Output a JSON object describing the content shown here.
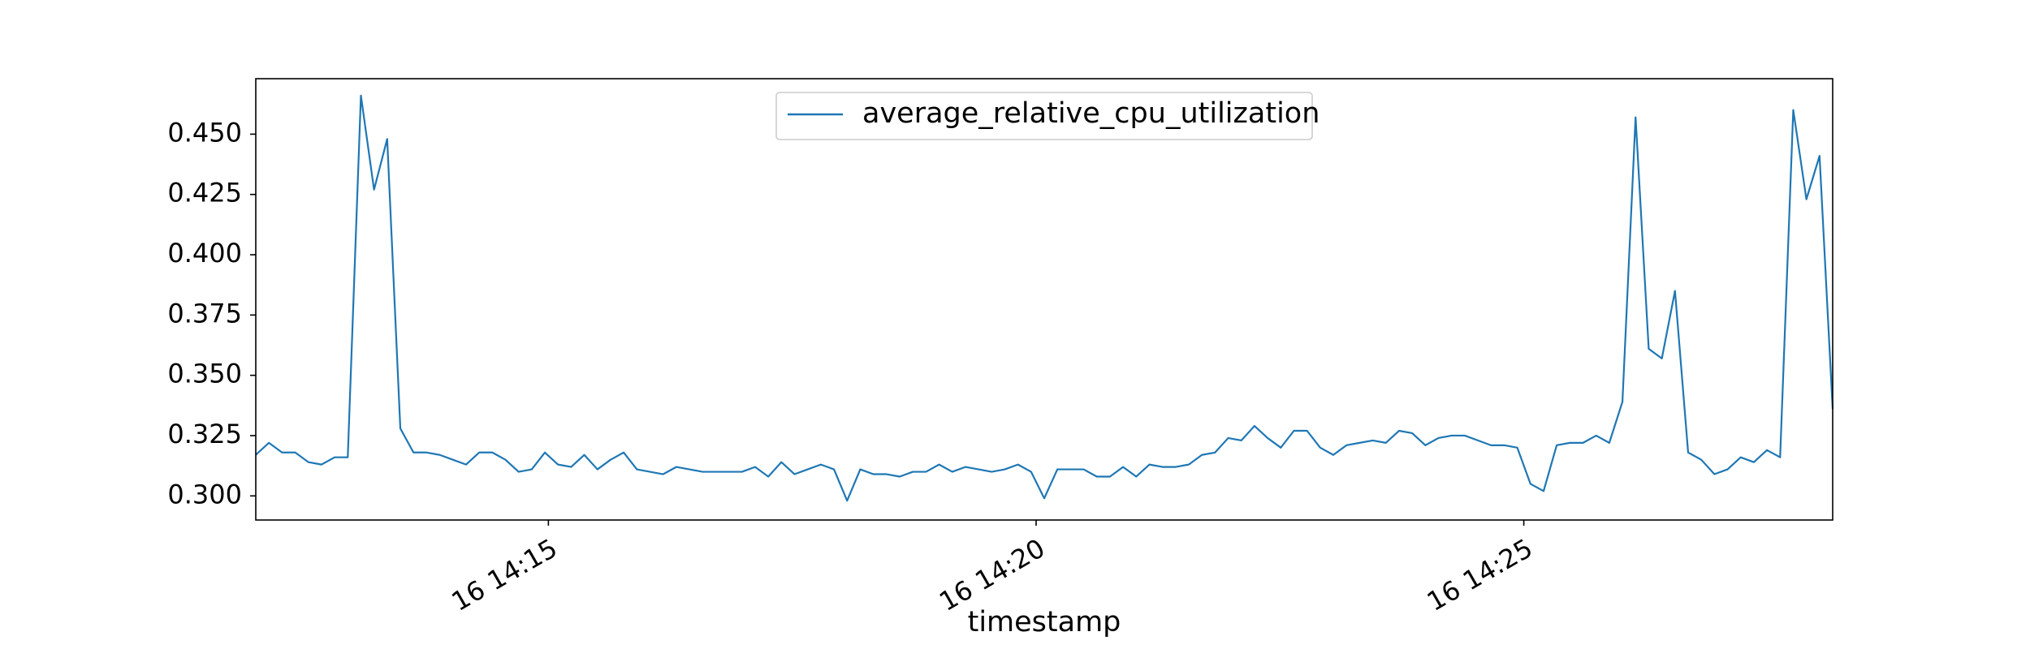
{
  "chart_data": {
    "type": "line",
    "title": "",
    "xlabel": "timestamp",
    "ylabel": "",
    "x_start": "16 14:12:00",
    "x_end": "16 14:28:10",
    "x_ticks": [
      "16 14:15",
      "16 14:20",
      "16 14:25"
    ],
    "y_ticks": [
      "0.300",
      "0.325",
      "0.350",
      "0.375",
      "0.400",
      "0.425",
      "0.450"
    ],
    "ylim": [
      0.29,
      0.473
    ],
    "grid": false,
    "legend_position": "top-center",
    "series": [
      {
        "name": "average_relative_cpu_utilization",
        "color": "#1f77b4",
        "values": [
          0.317,
          0.322,
          0.318,
          0.318,
          0.314,
          0.313,
          0.316,
          0.316,
          0.466,
          0.427,
          0.448,
          0.328,
          0.318,
          0.318,
          0.317,
          0.315,
          0.313,
          0.318,
          0.318,
          0.315,
          0.31,
          0.311,
          0.318,
          0.313,
          0.312,
          0.317,
          0.311,
          0.315,
          0.318,
          0.311,
          0.31,
          0.309,
          0.312,
          0.311,
          0.31,
          0.31,
          0.31,
          0.31,
          0.312,
          0.308,
          0.314,
          0.309,
          0.311,
          0.313,
          0.311,
          0.298,
          0.311,
          0.309,
          0.309,
          0.308,
          0.31,
          0.31,
          0.313,
          0.31,
          0.312,
          0.311,
          0.31,
          0.311,
          0.313,
          0.31,
          0.299,
          0.311,
          0.311,
          0.311,
          0.308,
          0.308,
          0.312,
          0.308,
          0.313,
          0.312,
          0.312,
          0.313,
          0.317,
          0.318,
          0.324,
          0.323,
          0.329,
          0.324,
          0.32,
          0.327,
          0.327,
          0.32,
          0.317,
          0.321,
          0.322,
          0.323,
          0.322,
          0.327,
          0.326,
          0.321,
          0.324,
          0.325,
          0.325,
          0.323,
          0.321,
          0.321,
          0.32,
          0.305,
          0.302,
          0.321,
          0.322,
          0.322,
          0.325,
          0.322,
          0.339,
          0.457,
          0.361,
          0.357,
          0.385,
          0.318,
          0.315,
          0.309,
          0.311,
          0.316,
          0.314,
          0.319,
          0.316,
          0.46,
          0.423,
          0.441,
          0.336
        ]
      }
    ]
  }
}
